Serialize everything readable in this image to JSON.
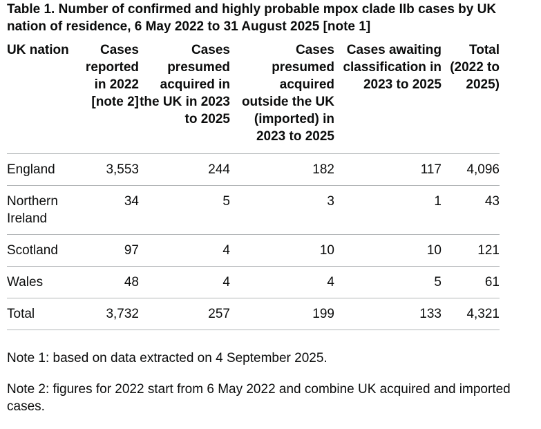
{
  "caption": "Table 1. Number of confirmed and highly probable mpox clade IIb cases by UK nation of residence, 6 May 2022 to 31 August 2025 [note 1]",
  "table": {
    "headers": [
      "UK nation",
      "Cases reported in 2022 [note 2]",
      "Cases presumed acquired in the UK in 2023 to 2025",
      "Cases presumed acquired outside the UK (imported) in 2023 to 2025",
      "Cases awaiting classification in 2023 to 2025",
      "Total (2022 to 2025)"
    ],
    "rows": [
      [
        "England",
        "3,553",
        "244",
        "182",
        "117",
        "4,096"
      ],
      [
        "Northern Ireland",
        "34",
        "5",
        "3",
        "1",
        "43"
      ],
      [
        "Scotland",
        "97",
        "4",
        "10",
        "10",
        "121"
      ],
      [
        "Wales",
        "48",
        "4",
        "4",
        "5",
        "61"
      ],
      [
        "Total",
        "3,732",
        "257",
        "199",
        "133",
        "4,321"
      ]
    ]
  },
  "notes": [
    "Note 1: based on data extracted on 4 September 2025.",
    "Note 2: figures for 2022 start from 6 May 2022 and combine UK acquired and imported cases."
  ],
  "colors": {
    "text": "#0b0c0c",
    "rule": "#b1b4b6",
    "background": "#ffffff"
  }
}
